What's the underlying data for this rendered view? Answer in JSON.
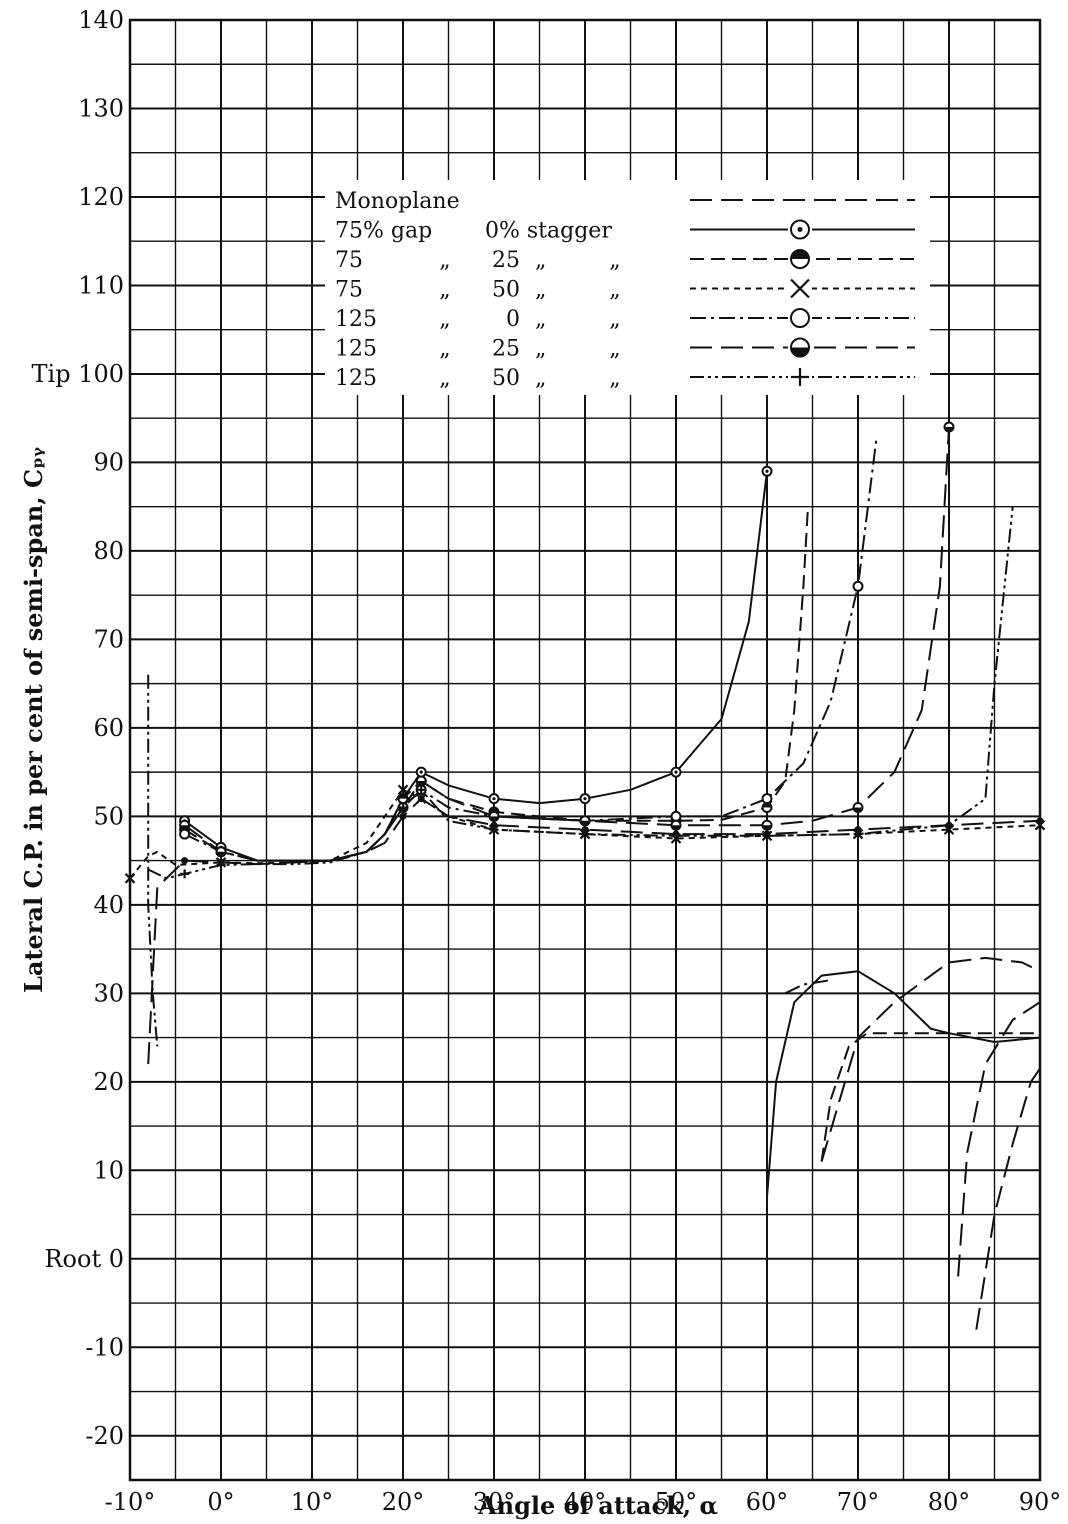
{
  "chart_data": {
    "type": "line",
    "title": "",
    "xlabel": "Angle of attack, α",
    "ylabel": "Lateral C.P. in per cent of semi-span, Cₚᵧ",
    "xlim": [
      -10,
      90
    ],
    "ylim": [
      -25,
      140
    ],
    "grid": true,
    "x_ticks": [
      {
        "value": -10,
        "label": "-10°"
      },
      {
        "value": 0,
        "label": "0°"
      },
      {
        "value": 10,
        "label": "10°"
      },
      {
        "value": 20,
        "label": "20°"
      },
      {
        "value": 30,
        "label": "30°"
      },
      {
        "value": 40,
        "label": "40°"
      },
      {
        "value": 50,
        "label": "50°"
      },
      {
        "value": 60,
        "label": "60°"
      },
      {
        "value": 70,
        "label": "70°"
      },
      {
        "value": 80,
        "label": "80°"
      },
      {
        "value": 90,
        "label": "90°"
      }
    ],
    "y_ticks": [
      {
        "value": 140,
        "label": "140"
      },
      {
        "value": 130,
        "label": "130"
      },
      {
        "value": 120,
        "label": "120"
      },
      {
        "value": 110,
        "label": "110"
      },
      {
        "value": 100,
        "label": "Tip 100"
      },
      {
        "value": 90,
        "label": "90"
      },
      {
        "value": 80,
        "label": "80"
      },
      {
        "value": 70,
        "label": "70"
      },
      {
        "value": 60,
        "label": "60"
      },
      {
        "value": 50,
        "label": "50"
      },
      {
        "value": 40,
        "label": "40"
      },
      {
        "value": 30,
        "label": "30"
      },
      {
        "value": 20,
        "label": "20"
      },
      {
        "value": 10,
        "label": "10"
      },
      {
        "value": 0,
        "label": "Root 0"
      },
      {
        "value": -10,
        "label": "-10"
      },
      {
        "value": -20,
        "label": "-20"
      }
    ],
    "legend_placement": "top-center",
    "legend": {
      "rows": [
        {
          "c1": "Monoplane",
          "c2": "",
          "c3": "",
          "c4": "",
          "c5": "",
          "style": "long-dash",
          "marker": "none"
        },
        {
          "c1": "75% gap",
          "c2": "",
          "c3": "0% stagger",
          "c4": "",
          "c5": "",
          "style": "solid",
          "marker": "dot-circle"
        },
        {
          "c1": "75",
          "c2": "„",
          "c3": "25",
          "c4": "„",
          "c5": "„",
          "style": "dash",
          "marker": "half-circle-top"
        },
        {
          "c1": "75",
          "c2": "„",
          "c3": "50",
          "c4": "„",
          "c5": "„",
          "style": "short-dash",
          "marker": "x"
        },
        {
          "c1": "125",
          "c2": "„",
          "c3": "0",
          "c4": "„",
          "c5": "„",
          "style": "dash-dot",
          "marker": "circle"
        },
        {
          "c1": "125",
          "c2": "„",
          "c3": "25",
          "c4": "„",
          "c5": "„",
          "style": "long-dash",
          "marker": "half-circle-bottom"
        },
        {
          "c1": "125",
          "c2": "„",
          "c3": "50",
          "c4": "„",
          "c5": "„",
          "style": "dash-dot-dot",
          "marker": "plus"
        }
      ]
    },
    "series": [
      {
        "style": "long-dash",
        "marker": "dot",
        "points": [
          [
            -8,
            22
          ],
          [
            -7,
            42
          ],
          [
            -4,
            45
          ],
          [
            0,
            44.8
          ],
          [
            4,
            44.6
          ],
          [
            8,
            44.8
          ],
          [
            12,
            45
          ],
          [
            16,
            46
          ],
          [
            18,
            47
          ],
          [
            20,
            50
          ],
          [
            22,
            52
          ],
          [
            25,
            50
          ],
          [
            30,
            49
          ],
          [
            40,
            48.5
          ],
          [
            50,
            48
          ],
          [
            60,
            48
          ],
          [
            70,
            48.5
          ],
          [
            80,
            49
          ],
          [
            90,
            49.5
          ]
        ],
        "extra_segments": [
          [
            [
              81,
              -2
            ],
            [
              82,
              12
            ],
            [
              84,
              22
            ],
            [
              87,
              27
            ],
            [
              90,
              29
            ]
          ],
          [
            [
              83,
              -8
            ],
            [
              85,
              5
            ],
            [
              87,
              13
            ],
            [
              89,
              20
            ],
            [
              90,
              21.5
            ]
          ]
        ]
      },
      {
        "style": "solid",
        "marker": "dot-circle",
        "points": [
          [
            -4,
            49.5
          ],
          [
            0,
            46.5
          ],
          [
            4,
            45
          ],
          [
            8,
            45
          ],
          [
            12,
            45
          ],
          [
            16,
            46
          ],
          [
            18,
            48
          ],
          [
            20,
            52
          ],
          [
            22,
            55
          ],
          [
            25,
            53.5
          ],
          [
            30,
            52
          ],
          [
            35,
            51.5
          ],
          [
            40,
            52
          ],
          [
            45,
            53
          ],
          [
            50,
            55
          ],
          [
            55,
            61
          ],
          [
            58,
            72
          ],
          [
            60,
            89
          ]
        ],
        "extra_segments": [
          [
            [
              60,
              7
            ],
            [
              61,
              20
            ],
            [
              63,
              29
            ],
            [
              66,
              32
            ],
            [
              70,
              32.5
            ],
            [
              74,
              30
            ],
            [
              78,
              26
            ],
            [
              80,
              25.5
            ],
            [
              85,
              24.5
            ],
            [
              90,
              25
            ]
          ]
        ]
      },
      {
        "style": "dash",
        "marker": "half-circle-top",
        "points": [
          [
            -4,
            48.5
          ],
          [
            0,
            46
          ],
          [
            4,
            45
          ],
          [
            8,
            45
          ],
          [
            12,
            45
          ],
          [
            16,
            46
          ],
          [
            18,
            48
          ],
          [
            20,
            52
          ],
          [
            22,
            54
          ],
          [
            25,
            52
          ],
          [
            30,
            50.5
          ],
          [
            35,
            50
          ],
          [
            40,
            49.5
          ],
          [
            50,
            49.5
          ],
          [
            55,
            49.6
          ],
          [
            60,
            51
          ],
          [
            62,
            54
          ],
          [
            63,
            62
          ],
          [
            64,
            76
          ],
          [
            64.5,
            85
          ]
        ],
        "extra_segments": [
          [
            [
              66,
              11
            ],
            [
              67,
              18
            ],
            [
              69,
              24
            ],
            [
              71,
              25.5
            ],
            [
              80,
              25.5
            ],
            [
              90,
              25.5
            ]
          ]
        ]
      },
      {
        "style": "short-dash",
        "marker": "x",
        "points": [
          [
            -10,
            43
          ],
          [
            -8,
            45.5
          ],
          [
            -7,
            46
          ],
          [
            -5,
            44.5
          ],
          [
            0,
            44.8
          ],
          [
            4,
            44.7
          ],
          [
            8,
            44.8
          ],
          [
            12,
            45
          ],
          [
            16,
            47
          ],
          [
            18,
            50
          ],
          [
            20,
            53
          ],
          [
            22,
            52
          ],
          [
            25,
            50
          ],
          [
            30,
            48.5
          ],
          [
            40,
            48
          ],
          [
            50,
            47.5
          ],
          [
            60,
            47.8
          ],
          [
            70,
            48
          ],
          [
            80,
            48.5
          ],
          [
            90,
            49
          ]
        ]
      },
      {
        "style": "dash-dot",
        "marker": "circle",
        "points": [
          [
            -4,
            48
          ],
          [
            0,
            46
          ],
          [
            4,
            45
          ],
          [
            8,
            45
          ],
          [
            12,
            45
          ],
          [
            16,
            46
          ],
          [
            18,
            48
          ],
          [
            20,
            51
          ],
          [
            22,
            53
          ],
          [
            25,
            51
          ],
          [
            30,
            50
          ],
          [
            40,
            49.5
          ],
          [
            50,
            50
          ],
          [
            55,
            50
          ],
          [
            60,
            52
          ],
          [
            64,
            56
          ],
          [
            67,
            63
          ],
          [
            70,
            76
          ],
          [
            72,
            92.5
          ]
        ],
        "extra_segments": [
          [
            [
              62,
              30
            ],
            [
              64,
              31
            ],
            [
              67,
              31.5
            ]
          ]
        ]
      },
      {
        "style": "long-dash",
        "marker": "half-circle-bottom",
        "points": [
          [
            -4,
            49
          ],
          [
            0,
            46
          ],
          [
            4,
            45
          ],
          [
            8,
            45
          ],
          [
            12,
            45
          ],
          [
            16,
            46
          ],
          [
            18,
            48
          ],
          [
            20,
            51
          ],
          [
            22,
            54
          ],
          [
            25,
            52
          ],
          [
            30,
            50
          ],
          [
            40,
            49.5
          ],
          [
            50,
            49
          ],
          [
            60,
            49
          ],
          [
            65,
            49.5
          ],
          [
            70,
            51
          ],
          [
            74,
            55
          ],
          [
            77,
            62
          ],
          [
            79,
            76
          ],
          [
            80,
            94
          ]
        ],
        "extra_segments": [
          [
            [
              66,
              11
            ],
            [
              70,
              25
            ],
            [
              74,
              29
            ],
            [
              78,
              32
            ],
            [
              80,
              33.5
            ],
            [
              84,
              34
            ],
            [
              88,
              33.5
            ],
            [
              90,
              32.5
            ]
          ]
        ]
      },
      {
        "style": "dash-dot-dot",
        "marker": "plus",
        "points": [
          [
            -8,
            44
          ],
          [
            -6,
            43
          ],
          [
            -4,
            43.5
          ],
          [
            0,
            44.5
          ],
          [
            4,
            44.6
          ],
          [
            8,
            44.6
          ],
          [
            12,
            44.8
          ],
          [
            16,
            46
          ],
          [
            18,
            48
          ],
          [
            20,
            51
          ],
          [
            22,
            53
          ],
          [
            25,
            49.5
          ],
          [
            30,
            48.5
          ],
          [
            40,
            48
          ],
          [
            50,
            47.8
          ],
          [
            60,
            47.8
          ],
          [
            70,
            48
          ],
          [
            80,
            49
          ],
          [
            84,
            52
          ],
          [
            85,
            65
          ],
          [
            86,
            75
          ],
          [
            87,
            85
          ]
        ],
        "extra_segments": [
          [
            [
              -8,
              66
            ],
            [
              -8,
              40
            ],
            [
              -7.5,
              30
            ],
            [
              -7,
              24
            ]
          ]
        ]
      }
    ]
  }
}
